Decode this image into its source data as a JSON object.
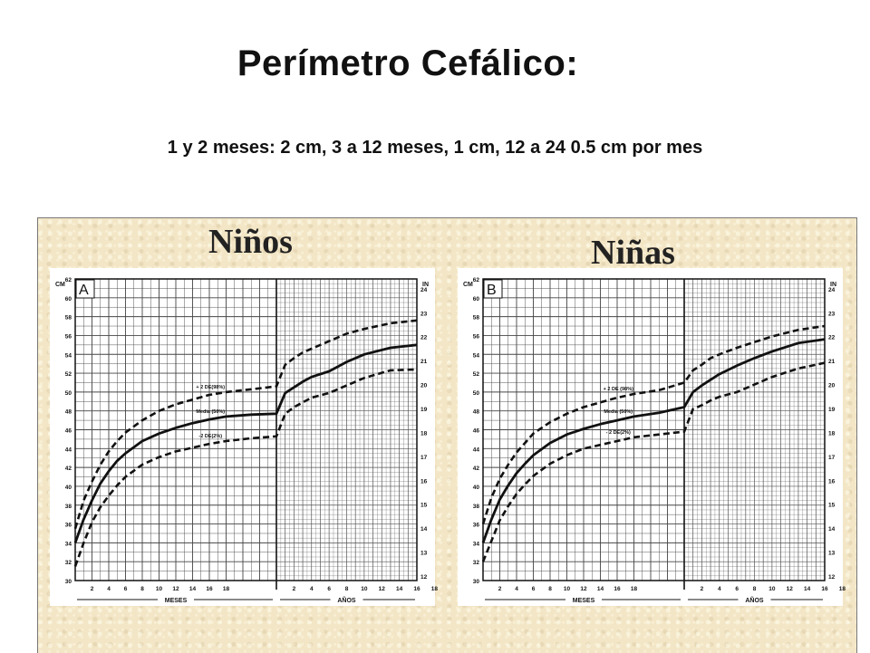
{
  "title": "Perímetro Cefálico:",
  "subtitle": "1 y 2 meses: 2 cm,  3 a 12 meses, 1 cm, 12 a 24 0.5 cm por mes",
  "chart_data": [
    {
      "type": "line",
      "title": "Niños",
      "panel_letter": "A",
      "xlabel_left": "MESES",
      "xlabel_right": "AÑOS",
      "ylabel_left": "CM",
      "ylabel_right": "IN",
      "x_ticks_months": [
        "2",
        "4",
        "6",
        "8",
        "10",
        "12",
        "14",
        "16",
        "18"
      ],
      "x_ticks_years": [
        "2",
        "4",
        "6",
        "8",
        "10",
        "12",
        "14",
        "16",
        "18"
      ],
      "y_ticks_cm": [
        "30",
        "32",
        "34",
        "36",
        "38",
        "40",
        "42",
        "44",
        "46",
        "48",
        "50",
        "52",
        "54",
        "56",
        "58",
        "60",
        "62"
      ],
      "y_ticks_in": [
        "12",
        "13",
        "14",
        "15",
        "16",
        "17",
        "18",
        "19",
        "20",
        "21",
        "22",
        "23",
        "24"
      ],
      "ylim_cm": [
        30,
        62
      ],
      "series": [
        {
          "name": "+ 2 DE(98%)",
          "style": "dashed",
          "points": [
            [
              0,
              35.5
            ],
            [
              1,
              38.5
            ],
            [
              2,
              40.5
            ],
            [
              3,
              42.3
            ],
            [
              4,
              43.7
            ],
            [
              5,
              44.8
            ],
            [
              6,
              45.7
            ],
            [
              8,
              47
            ],
            [
              10,
              48
            ],
            [
              12,
              48.7
            ],
            [
              14,
              49.2
            ],
            [
              16,
              49.7
            ],
            [
              18,
              50
            ],
            [
              21,
              50.3
            ],
            [
              24,
              50.6
            ],
            [
              36,
              52.9
            ],
            [
              48,
              53.6
            ],
            [
              60,
              54.2
            ],
            [
              72,
              54.6
            ],
            [
              96,
              55.4
            ],
            [
              120,
              56.2
            ],
            [
              144,
              56.7
            ],
            [
              180,
              57.3
            ],
            [
              216,
              57.6
            ]
          ]
        },
        {
          "name": "Media (50%)",
          "style": "solid",
          "points": [
            [
              0,
              34
            ],
            [
              1,
              36.5
            ],
            [
              2,
              38.5
            ],
            [
              3,
              40.3
            ],
            [
              4,
              41.6
            ],
            [
              5,
              42.7
            ],
            [
              6,
              43.5
            ],
            [
              8,
              44.8
            ],
            [
              10,
              45.6
            ],
            [
              12,
              46.2
            ],
            [
              14,
              46.7
            ],
            [
              16,
              47.1
            ],
            [
              18,
              47.4
            ],
            [
              21,
              47.6
            ],
            [
              24,
              47.7
            ],
            [
              36,
              49.9
            ],
            [
              48,
              50.5
            ],
            [
              60,
              51.1
            ],
            [
              72,
              51.6
            ],
            [
              96,
              52.2
            ],
            [
              120,
              53.2
            ],
            [
              144,
              54
            ],
            [
              180,
              54.7
            ],
            [
              216,
              55
            ]
          ]
        },
        {
          "name": "-2 DE(2%)",
          "style": "dashed",
          "points": [
            [
              0,
              31.5
            ],
            [
              1,
              34
            ],
            [
              2,
              36.2
            ],
            [
              3,
              37.8
            ],
            [
              4,
              39
            ],
            [
              5,
              40.1
            ],
            [
              6,
              41
            ],
            [
              8,
              42.3
            ],
            [
              10,
              43.1
            ],
            [
              12,
              43.7
            ],
            [
              14,
              44.1
            ],
            [
              16,
              44.5
            ],
            [
              18,
              44.8
            ],
            [
              21,
              45.1
            ],
            [
              24,
              45.3
            ],
            [
              36,
              47.7
            ],
            [
              48,
              48.4
            ],
            [
              60,
              48.9
            ],
            [
              72,
              49.4
            ],
            [
              96,
              49.9
            ],
            [
              120,
              50.7
            ],
            [
              144,
              51.5
            ],
            [
              180,
              52.3
            ],
            [
              216,
              52.4
            ]
          ]
        }
      ]
    },
    {
      "type": "line",
      "title": "Niñas",
      "panel_letter": "B",
      "xlabel_left": "MESES",
      "xlabel_right": "AÑOS",
      "ylabel_left": "CM",
      "ylabel_right": "IN",
      "x_ticks_months": [
        "2",
        "4",
        "6",
        "8",
        "10",
        "12",
        "14",
        "16",
        "18"
      ],
      "x_ticks_years": [
        "2",
        "4",
        "6",
        "8",
        "10",
        "12",
        "14",
        "16",
        "18"
      ],
      "y_ticks_cm": [
        "30",
        "32",
        "34",
        "36",
        "38",
        "40",
        "42",
        "44",
        "46",
        "48",
        "50",
        "52",
        "54",
        "56",
        "58",
        "60",
        "62"
      ],
      "y_ticks_in": [
        "12",
        "13",
        "14",
        "15",
        "16",
        "17",
        "18",
        "19",
        "20",
        "21",
        "22",
        "23",
        "24"
      ],
      "ylim_cm": [
        30,
        62
      ],
      "series": [
        {
          "name": "+ 2 DE (98%)",
          "style": "dashed",
          "points": [
            [
              0,
              36
            ],
            [
              1,
              38.8
            ],
            [
              2,
              40.8
            ],
            [
              3,
              42.3
            ],
            [
              4,
              43.6
            ],
            [
              5,
              44.6
            ],
            [
              6,
              45.6
            ],
            [
              8,
              46.8
            ],
            [
              10,
              47.7
            ],
            [
              12,
              48.4
            ],
            [
              14,
              48.9
            ],
            [
              16,
              49.4
            ],
            [
              18,
              49.8
            ],
            [
              21,
              50.2
            ],
            [
              24,
              51
            ],
            [
              36,
              52.3
            ],
            [
              48,
              52.9
            ],
            [
              60,
              53.6
            ],
            [
              72,
              54
            ],
            [
              96,
              54.7
            ],
            [
              120,
              55.3
            ],
            [
              144,
              55.9
            ],
            [
              180,
              56.6
            ],
            [
              216,
              57
            ]
          ]
        },
        {
          "name": "Media (50%)",
          "style": "solid",
          "points": [
            [
              0,
              34
            ],
            [
              1,
              36.5
            ],
            [
              2,
              38.6
            ],
            [
              3,
              40.1
            ],
            [
              4,
              41.4
            ],
            [
              5,
              42.4
            ],
            [
              6,
              43.3
            ],
            [
              8,
              44.6
            ],
            [
              10,
              45.5
            ],
            [
              12,
              46.1
            ],
            [
              14,
              46.6
            ],
            [
              16,
              47
            ],
            [
              18,
              47.4
            ],
            [
              21,
              47.8
            ],
            [
              24,
              48.4
            ],
            [
              36,
              50
            ],
            [
              48,
              50.7
            ],
            [
              60,
              51.3
            ],
            [
              72,
              51.9
            ],
            [
              96,
              52.8
            ],
            [
              120,
              53.6
            ],
            [
              144,
              54.3
            ],
            [
              180,
              55.2
            ],
            [
              216,
              55.6
            ]
          ]
        },
        {
          "name": "- 2 DE(2%)",
          "style": "dashed",
          "points": [
            [
              0,
              32
            ],
            [
              1,
              34.2
            ],
            [
              2,
              36.4
            ],
            [
              3,
              37.9
            ],
            [
              4,
              39.2
            ],
            [
              5,
              40.2
            ],
            [
              6,
              41.1
            ],
            [
              8,
              42.4
            ],
            [
              10,
              43.3
            ],
            [
              12,
              44
            ],
            [
              14,
              44.4
            ],
            [
              16,
              44.8
            ],
            [
              18,
              45.2
            ],
            [
              21,
              45.5
            ],
            [
              24,
              45.8
            ],
            [
              36,
              48.2
            ],
            [
              48,
              48.6
            ],
            [
              60,
              49.1
            ],
            [
              72,
              49.5
            ],
            [
              96,
              50
            ],
            [
              120,
              50.8
            ],
            [
              144,
              51.6
            ],
            [
              180,
              52.5
            ],
            [
              216,
              53.1
            ]
          ]
        }
      ]
    }
  ]
}
